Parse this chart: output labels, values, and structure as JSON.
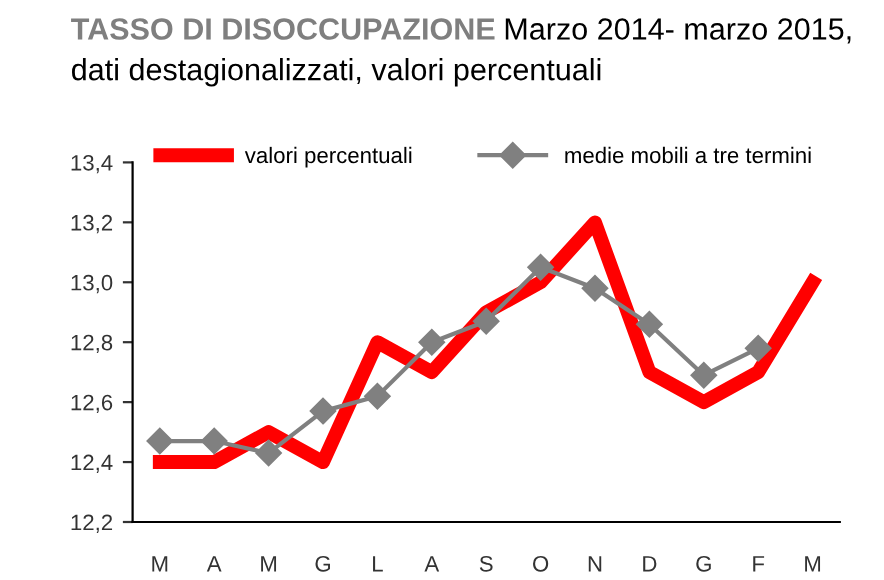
{
  "chart_data": {
    "type": "line",
    "title": "TASSO DI DISOCCUPAZIONE",
    "subtitle": "Marzo 2014- marzo 2015, dati destagionalizzati, valori percentuali",
    "categories": [
      "M",
      "A",
      "M",
      "G",
      "L",
      "A",
      "S",
      "O",
      "N",
      "D",
      "G",
      "F",
      "M"
    ],
    "series": [
      {
        "name": "valori percentuali",
        "color": "#ff0000",
        "marker": "none",
        "values": [
          12.4,
          12.4,
          12.5,
          12.4,
          12.8,
          12.7,
          12.9,
          13.0,
          13.2,
          12.7,
          12.6,
          12.7,
          13.0
        ]
      },
      {
        "name": "medie mobili a tre termini",
        "color": "#808080",
        "marker": "diamond",
        "values": [
          12.47,
          12.47,
          12.43,
          12.57,
          12.62,
          12.8,
          12.87,
          13.05,
          12.98,
          12.86,
          12.69,
          12.78,
          null
        ]
      }
    ],
    "ylim": [
      12.2,
      13.4
    ],
    "yticks": [
      {
        "value": 12.2,
        "label": "12,2"
      },
      {
        "value": 12.4,
        "label": "12,4"
      },
      {
        "value": 12.6,
        "label": "12,6"
      },
      {
        "value": 12.8,
        "label": "12,8"
      },
      {
        "value": 13.0,
        "label": "13,0"
      },
      {
        "value": 13.2,
        "label": "13,2"
      },
      {
        "value": 13.4,
        "label": "13,4"
      }
    ],
    "grid": false,
    "legend": "top"
  }
}
